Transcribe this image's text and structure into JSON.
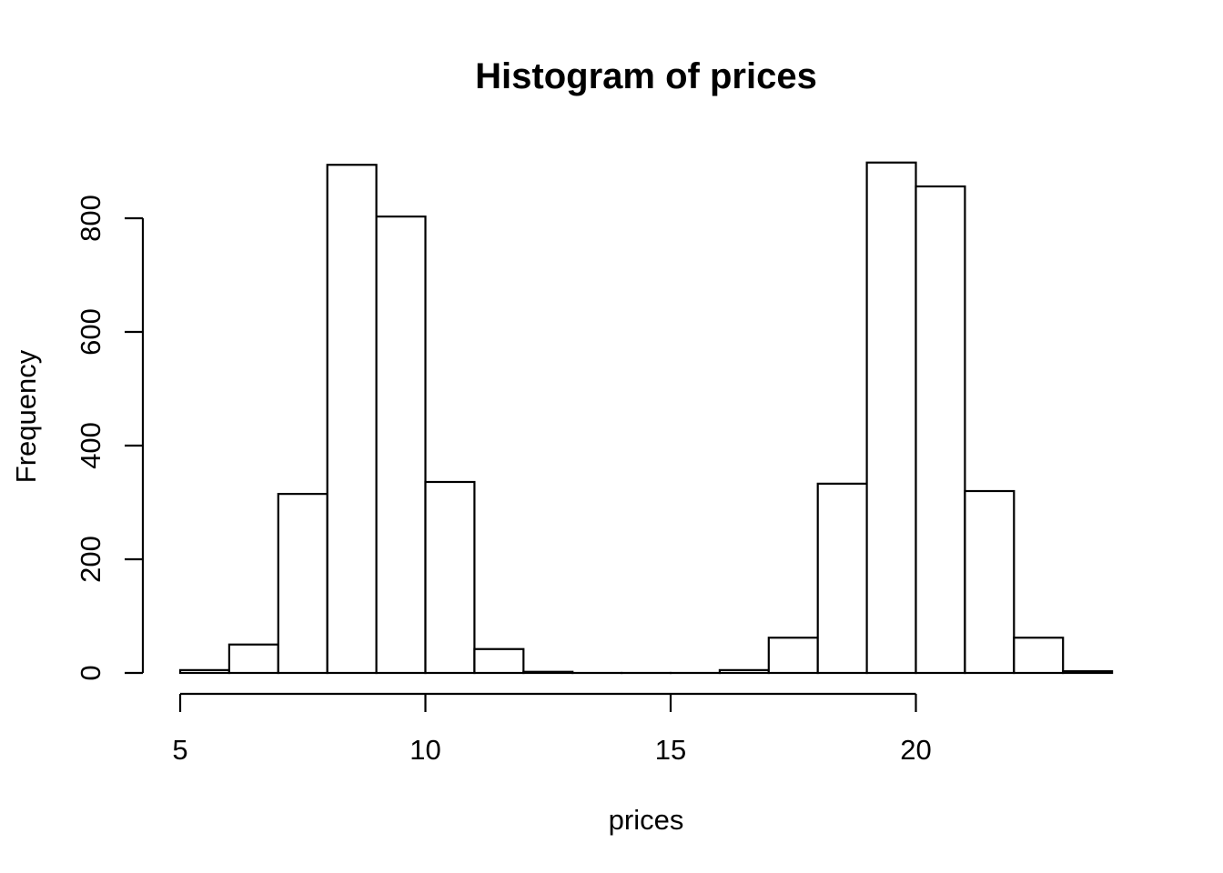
{
  "colors": {
    "background": "#ffffff",
    "stroke": "#000000",
    "bar_fill": "#ffffff",
    "text": "#000000"
  },
  "chart_data": {
    "type": "bar",
    "subtype": "histogram",
    "title": "Histogram of prices",
    "xlabel": "prices",
    "ylabel": "Frequency",
    "bin_start": 5,
    "bin_width": 1,
    "bin_edges": [
      5,
      6,
      7,
      8,
      9,
      10,
      11,
      12,
      13,
      14,
      15,
      16,
      17,
      18,
      19,
      20,
      21,
      22,
      23,
      24
    ],
    "counts": [
      5,
      50,
      315,
      894,
      803,
      336,
      42,
      2,
      0,
      0,
      0,
      5,
      62,
      333,
      898,
      856,
      320,
      62,
      3
    ],
    "x_ticks": [
      5,
      10,
      15,
      20
    ],
    "y_ticks": [
      0,
      200,
      400,
      600,
      800
    ],
    "xlim": [
      5,
      24
    ],
    "ylim": [
      0,
      900
    ],
    "grid": false,
    "legend": null,
    "bar_fill": "#ffffff",
    "bar_stroke": "#000000"
  }
}
